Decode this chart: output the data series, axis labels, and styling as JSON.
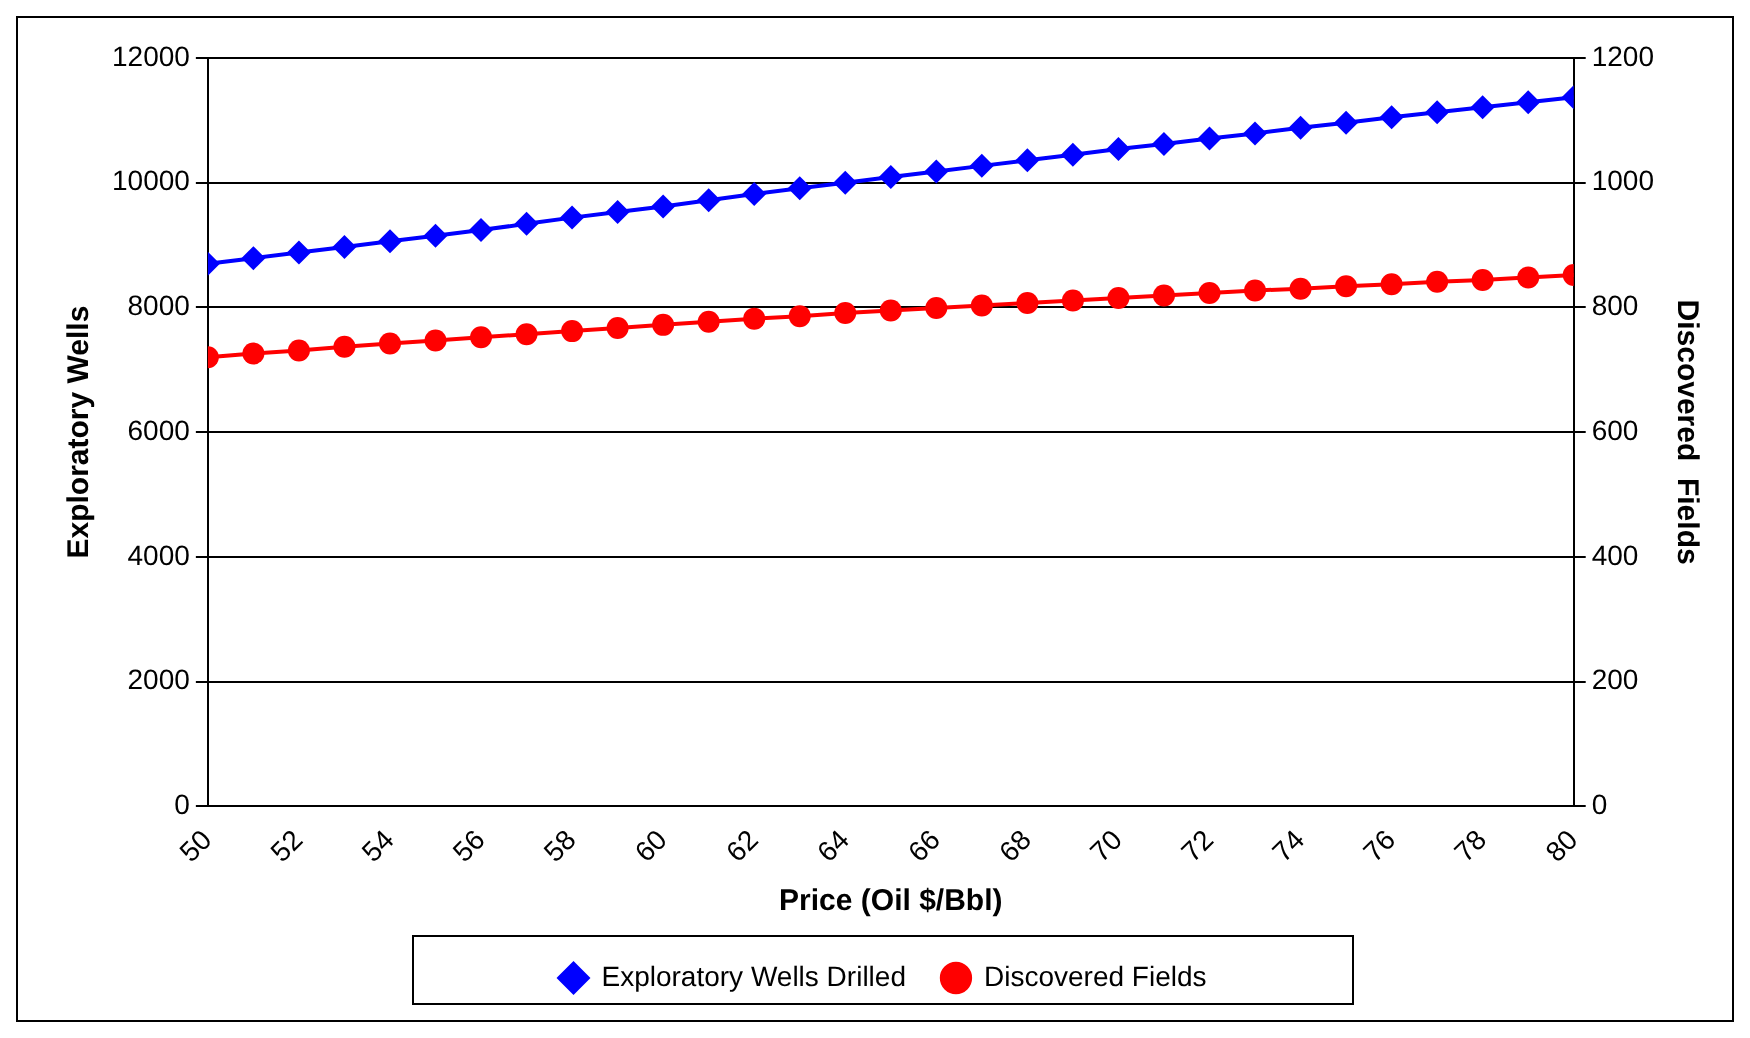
{
  "chart_data": {
    "type": "line",
    "xlabel": "Price (Oil $/Bbl)",
    "ylabel": "Exploratory Wells",
    "y2label": "Discovered  Fields",
    "x": [
      50,
      51,
      52,
      53,
      54,
      55,
      56,
      57,
      58,
      59,
      60,
      61,
      62,
      63,
      64,
      65,
      66,
      67,
      68,
      69,
      70,
      71,
      72,
      73,
      74,
      75,
      76,
      77,
      78,
      79,
      80
    ],
    "xlim": [
      50,
      80
    ],
    "xticks": [
      50,
      52,
      54,
      56,
      58,
      60,
      62,
      64,
      66,
      68,
      70,
      72,
      74,
      76,
      78,
      80
    ],
    "ylim": [
      0,
      12000
    ],
    "yticks": [
      0,
      2000,
      4000,
      6000,
      8000,
      10000,
      12000
    ],
    "y2lim": [
      0,
      1200
    ],
    "y2ticks": [
      0,
      200,
      400,
      600,
      800,
      1000,
      1200
    ],
    "grid": "y",
    "legend": "bottom",
    "series": [
      {
        "name": "Exploratory Wells Drilled",
        "color": "#0000ff",
        "marker": "diamond",
        "values": [
          8700,
          8790,
          8880,
          8970,
          9060,
          9150,
          9240,
          9340,
          9440,
          9530,
          9620,
          9720,
          9820,
          9910,
          10000,
          10090,
          10180,
          10270,
          10360,
          10450,
          10540,
          10620,
          10710,
          10790,
          10880,
          10960,
          11050,
          11130,
          11210,
          11290,
          11370
        ]
      },
      {
        "name": "Discovered Fields",
        "color": "#ff0000",
        "marker": "circle",
        "axis": "y2",
        "values": [
          720,
          726,
          731,
          737,
          742,
          747,
          752,
          757,
          762,
          767,
          772,
          777,
          782,
          786,
          791,
          795,
          799,
          803,
          807,
          811,
          815,
          819,
          823,
          827,
          830,
          834,
          837,
          841,
          844,
          848,
          852
        ]
      }
    ]
  }
}
